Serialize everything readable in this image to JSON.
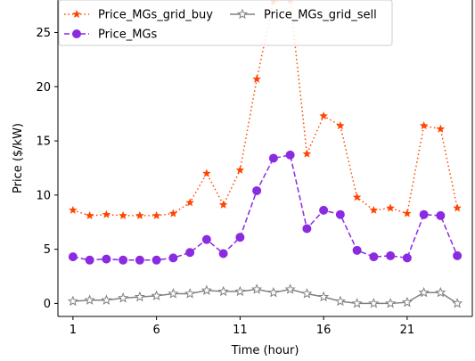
{
  "chart_data": {
    "type": "line",
    "title": "",
    "xlabel": "Time (hour)",
    "ylabel": "Price ($/kW)",
    "xlim": [
      0.1,
      24.9
    ],
    "ylim": [
      -1.2,
      28.0
    ],
    "xticks": [
      1,
      6,
      11,
      16,
      21
    ],
    "yticks": [
      0,
      5,
      10,
      15,
      20,
      25
    ],
    "grid": false,
    "legend_position": "top-left",
    "x": [
      1,
      2,
      3,
      4,
      5,
      6,
      7,
      8,
      9,
      10,
      11,
      12,
      13,
      14,
      15,
      16,
      17,
      18,
      19,
      20,
      21,
      22,
      23,
      24
    ],
    "series": [
      {
        "name": "Price_MGs_grid_buy",
        "color": "#ff4500",
        "style": "dotted",
        "marker": "star-filled",
        "values": [
          8.6,
          8.1,
          8.2,
          8.1,
          8.1,
          8.1,
          8.3,
          9.3,
          12.0,
          9.1,
          12.3,
          20.7,
          27.9,
          28.0,
          13.8,
          17.3,
          16.4,
          9.8,
          8.6,
          8.8,
          8.3,
          16.4,
          16.1,
          8.8
        ]
      },
      {
        "name": "Price_MGs",
        "color": "#8a2be2",
        "style": "dashed",
        "marker": "circle",
        "values": [
          4.3,
          4.0,
          4.1,
          4.0,
          4.0,
          4.0,
          4.2,
          4.7,
          5.9,
          4.6,
          6.1,
          10.4,
          13.4,
          13.7,
          6.9,
          8.6,
          8.2,
          4.9,
          4.3,
          4.4,
          4.2,
          8.2,
          8.1,
          4.4
        ]
      },
      {
        "name": "Price_MGs_grid_sell",
        "color": "#808080",
        "style": "solid",
        "marker": "star-open",
        "values": [
          0.2,
          0.3,
          0.3,
          0.5,
          0.6,
          0.7,
          0.9,
          0.9,
          1.2,
          1.1,
          1.1,
          1.3,
          1.0,
          1.3,
          0.9,
          0.6,
          0.2,
          0.0,
          0.0,
          0.0,
          0.1,
          1.0,
          1.0,
          0.0
        ]
      }
    ]
  }
}
